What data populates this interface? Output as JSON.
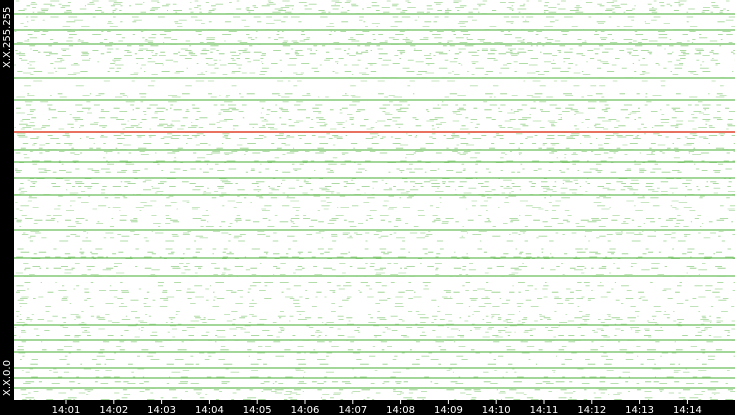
{
  "axis": {
    "y_top_label": "X.X.255.255",
    "y_bottom_label": "X.X.0.0",
    "time_labels": [
      "14:01",
      "14:02",
      "14:03",
      "14:04",
      "14:05",
      "14:06",
      "14:07",
      "14:08",
      "14:09",
      "14:10",
      "14:11",
      "14:12",
      "14:13",
      "14:14"
    ]
  }
}
